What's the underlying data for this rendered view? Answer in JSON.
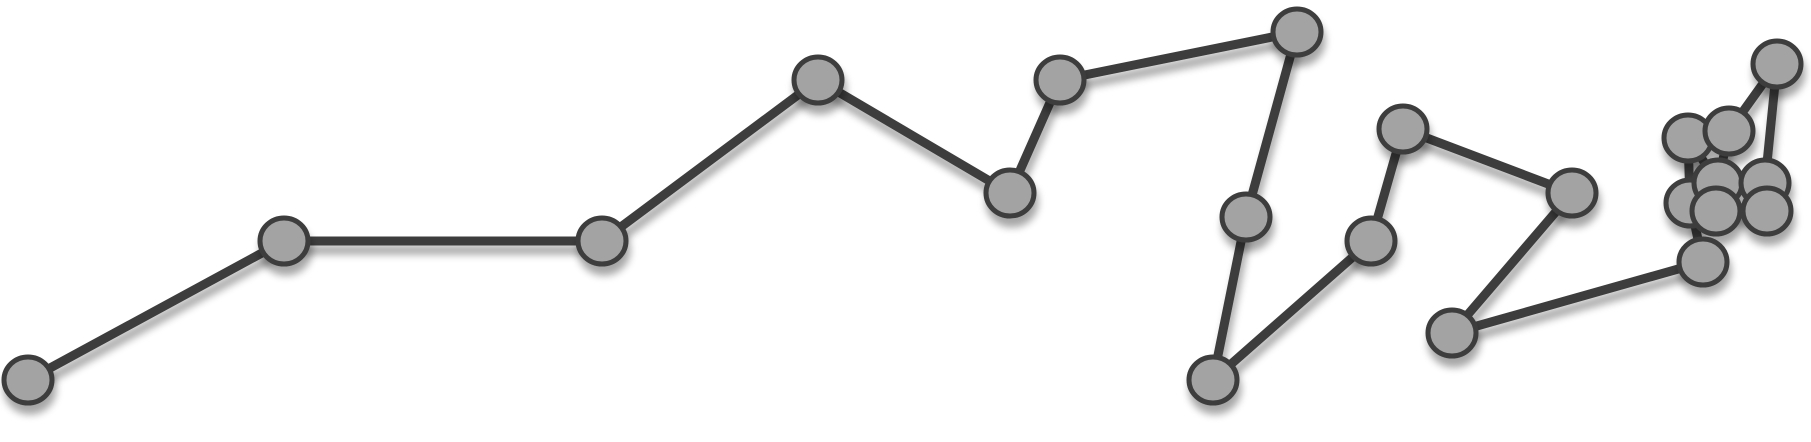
{
  "diagram": {
    "type": "node-link path",
    "node_count": 22,
    "colors": {
      "node_fill": "#a3a3a3",
      "node_stroke": "#3d3d3d",
      "edge_stroke": "#3d3d3d",
      "background": "#ffffff"
    }
  }
}
